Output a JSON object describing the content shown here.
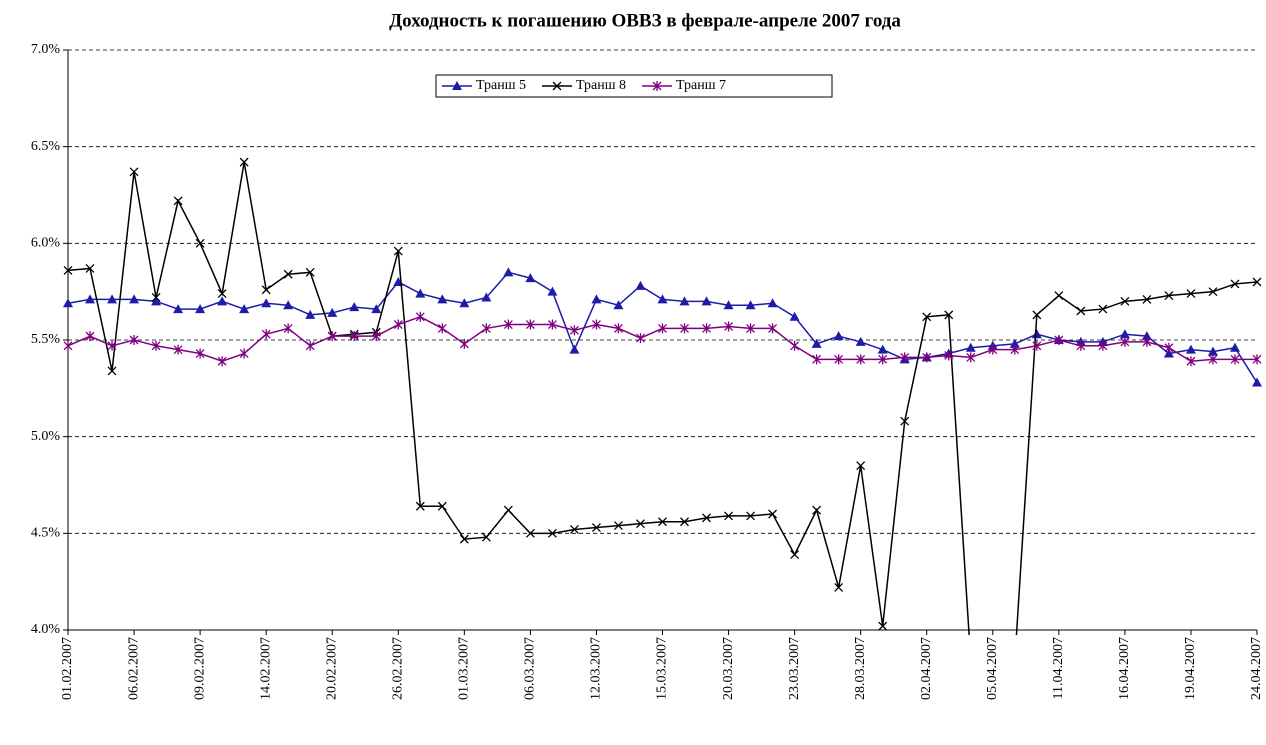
{
  "chart_data": {
    "type": "line",
    "title": "Доходность к погашению ОВВЗ в феврале-апреле 2007 года",
    "categories": [
      "01.02.2007",
      null,
      null,
      "06.02.2007",
      null,
      null,
      "09.02.2007",
      null,
      null,
      "14.02.2007",
      null,
      null,
      "20.02.2007",
      null,
      null,
      "26.02.2007",
      null,
      null,
      "01.03.2007",
      null,
      null,
      "06.03.2007",
      null,
      null,
      "12.03.2007",
      null,
      null,
      "15.03.2007",
      null,
      null,
      "20.03.2007",
      null,
      null,
      "23.03.2007",
      null,
      null,
      "28.03.2007",
      null,
      null,
      "02.04.2007",
      null,
      null,
      "05.04.2007",
      null,
      null,
      "11.04.2007",
      null,
      null,
      "16.04.2007",
      null,
      null,
      "19.04.2007",
      null,
      null,
      "24.04.2007"
    ],
    "series": [
      {
        "name": "Транш 5",
        "color": "#1c1ca8",
        "marker": "triangle",
        "values": [
          5.69,
          5.71,
          5.71,
          5.71,
          5.7,
          5.66,
          5.66,
          5.7,
          5.66,
          5.69,
          5.68,
          5.63,
          5.64,
          5.67,
          5.66,
          5.8,
          5.74,
          5.71,
          5.69,
          5.72,
          5.85,
          5.82,
          5.75,
          5.45,
          5.71,
          5.68,
          5.78,
          5.71,
          5.7,
          5.7,
          5.68,
          5.68,
          5.69,
          5.62,
          5.48,
          5.52,
          5.49,
          5.45,
          5.4,
          5.41,
          5.43,
          5.46,
          5.47,
          5.48,
          5.53,
          5.5,
          5.49,
          5.49,
          5.53,
          5.52,
          5.43,
          5.45,
          5.44,
          5.46,
          5.28
        ]
      },
      {
        "name": "Транш 8",
        "color": "#000000",
        "marker": "x",
        "values": [
          5.86,
          5.87,
          5.34,
          6.37,
          5.72,
          6.22,
          6.0,
          5.74,
          6.42,
          5.76,
          5.84,
          5.85,
          5.52,
          5.53,
          5.54,
          5.96,
          4.64,
          4.64,
          4.47,
          4.48,
          4.62,
          4.5,
          4.5,
          4.52,
          4.53,
          4.54,
          4.55,
          4.56,
          4.56,
          4.58,
          4.59,
          4.59,
          4.6,
          4.39,
          4.62,
          4.22,
          4.85,
          4.02,
          5.08,
          5.62,
          5.63,
          3.84,
          3.8,
          3.84,
          5.63,
          5.73,
          5.65,
          5.66,
          5.7,
          5.71,
          5.73,
          5.74,
          5.75,
          5.79,
          5.8
        ]
      },
      {
        "name": "Транш 7",
        "color": "#800080",
        "marker": "star",
        "values": [
          5.47,
          5.52,
          5.47,
          5.5,
          5.47,
          5.45,
          5.43,
          5.39,
          5.43,
          5.53,
          5.56,
          5.47,
          5.52,
          5.52,
          5.52,
          5.58,
          5.62,
          5.56,
          5.48,
          5.56,
          5.58,
          5.58,
          5.58,
          5.55,
          5.58,
          5.56,
          5.51,
          5.56,
          5.56,
          5.56,
          5.57,
          5.56,
          5.56,
          5.47,
          5.4,
          5.4,
          5.4,
          5.4,
          5.41,
          5.41,
          5.42,
          5.41,
          5.45,
          5.45,
          5.47,
          5.5,
          5.47,
          5.47,
          5.49,
          5.49,
          5.46,
          5.39,
          5.4,
          5.4,
          5.4
        ]
      }
    ],
    "ylim": [
      4,
      7
    ],
    "yticks": [
      {
        "value": 4,
        "label": "4.0%"
      },
      {
        "value": 4.5,
        "label": "4.5%"
      },
      {
        "value": 5,
        "label": "5.0%"
      },
      {
        "value": 5.5,
        "label": "5.5%"
      },
      {
        "value": 6,
        "label": "6.0%"
      },
      {
        "value": 6.5,
        "label": "6.5%"
      },
      {
        "value": 7,
        "label": "7.0%"
      }
    ],
    "grid": true,
    "legend": "top"
  }
}
